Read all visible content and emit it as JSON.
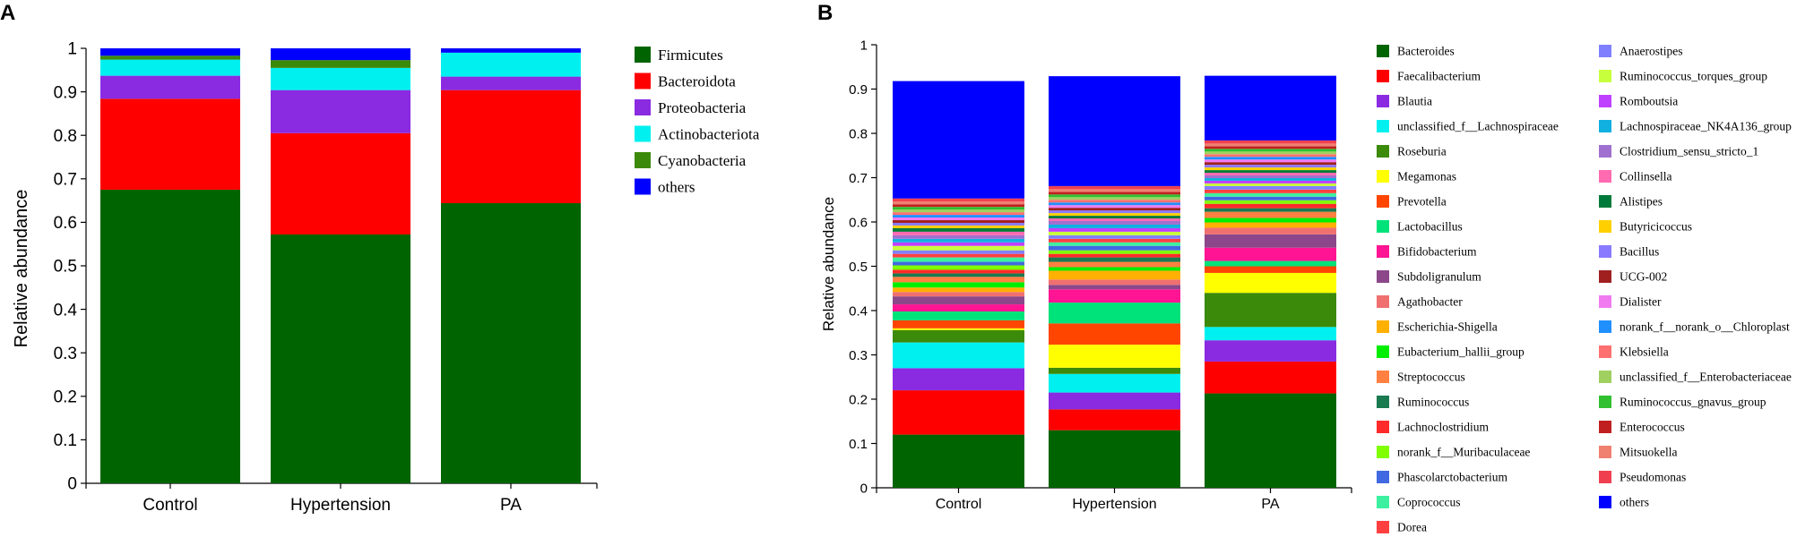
{
  "chart_data": [
    {
      "panel": "A",
      "type": "bar",
      "stacked": true,
      "ylabel": "Relative abundance",
      "xlabel": "",
      "ylim": [
        0,
        1
      ],
      "yticks": [
        "0",
        "0.1",
        "0.2",
        "0.3",
        "0.4",
        "0.5",
        "0.6",
        "0.7",
        "0.8",
        "0.9",
        "1"
      ],
      "categories": [
        "Control",
        "Hypertension",
        "PA"
      ],
      "legend_position": "right",
      "series": [
        {
          "name": "Firmicutes",
          "color": "#006400",
          "values": [
            0.675,
            0.572,
            0.644
          ]
        },
        {
          "name": "Bacteroidota",
          "color": "#ff0000",
          "values": [
            0.209,
            0.233,
            0.26
          ]
        },
        {
          "name": "Proteobacteria",
          "color": "#8a2be2",
          "values": [
            0.053,
            0.099,
            0.031
          ]
        },
        {
          "name": "Actinobacteriota",
          "color": "#00f0f0",
          "values": [
            0.037,
            0.051,
            0.055
          ]
        },
        {
          "name": "Cyanobacteria",
          "color": "#3c8a0a",
          "values": [
            0.009,
            0.018,
            0.0
          ]
        },
        {
          "name": "others",
          "color": "#0000ff",
          "values": [
            0.017,
            0.027,
            0.01
          ]
        }
      ]
    },
    {
      "panel": "B",
      "type": "bar",
      "stacked": true,
      "ylabel": "Relative abundance",
      "xlabel": "",
      "ylim": [
        0,
        1
      ],
      "yticks": [
        "0",
        "0.1",
        "0.2",
        "0.3",
        "0.4",
        "0.5",
        "0.6",
        "0.7",
        "0.8",
        "0.9",
        "1"
      ],
      "categories": [
        "Control",
        "Hypertension",
        "PA"
      ],
      "legend_position": "right",
      "series": [
        {
          "name": "Bacteroides",
          "color": "#006400",
          "values": [
            0.12,
            0.13,
            0.213
          ]
        },
        {
          "name": "Faecalibacterium",
          "color": "#ff0000",
          "values": [
            0.1,
            0.047,
            0.072
          ]
        },
        {
          "name": "Blautia",
          "color": "#8a2be2",
          "values": [
            0.05,
            0.038,
            0.048
          ]
        },
        {
          "name": "unclassified_f__Lachnospiraceae",
          "color": "#00f0f0",
          "values": [
            0.058,
            0.042,
            0.03
          ]
        },
        {
          "name": "Roseburia",
          "color": "#3c8a0a",
          "values": [
            0.028,
            0.014,
            0.077
          ]
        },
        {
          "name": "Megamonas",
          "color": "#ffff00",
          "values": [
            0.004,
            0.052,
            0.045
          ]
        },
        {
          "name": "Prevotella",
          "color": "#ff4500",
          "values": [
            0.018,
            0.048,
            0.015
          ]
        },
        {
          "name": "Lactobacillus",
          "color": "#00e27a",
          "values": [
            0.02,
            0.047,
            0.012
          ]
        },
        {
          "name": "Bifidobacterium",
          "color": "#ff1493",
          "values": [
            0.016,
            0.03,
            0.03
          ]
        },
        {
          "name": "Subdoligranulum",
          "color": "#8b4789",
          "values": [
            0.018,
            0.01,
            0.03
          ]
        },
        {
          "name": "Agathobacter",
          "color": "#f07070",
          "values": [
            0.01,
            0.012,
            0.015
          ]
        },
        {
          "name": "Escherichia-Shigella",
          "color": "#ffb000",
          "values": [
            0.01,
            0.02,
            0.012
          ]
        },
        {
          "name": "Eubacterium_hallii_group",
          "color": "#00ee00",
          "values": [
            0.012,
            0.008,
            0.01
          ]
        },
        {
          "name": "Streptococcus",
          "color": "#ff8040",
          "values": [
            0.012,
            0.012,
            0.014
          ]
        },
        {
          "name": "Ruminococcus",
          "color": "#1a7a50",
          "values": [
            0.008,
            0.01,
            0.008
          ]
        },
        {
          "name": "Lachnoclostridium",
          "color": "#ff2a2a",
          "values": [
            0.008,
            0.008,
            0.01
          ]
        },
        {
          "name": "norank_f__Muribaculaceae",
          "color": "#7fff00",
          "values": [
            0.01,
            0.008,
            0.008
          ]
        },
        {
          "name": "Phascolarctobacterium",
          "color": "#4169e1",
          "values": [
            0.008,
            0.01,
            0.008
          ]
        },
        {
          "name": "Coprococcus",
          "color": "#3cf0a0",
          "values": [
            0.01,
            0.008,
            0.008
          ]
        },
        {
          "name": "Dorea",
          "color": "#ff4040",
          "values": [
            0.008,
            0.008,
            0.008
          ]
        },
        {
          "name": "Anaerostipes",
          "color": "#8080ff",
          "values": [
            0.008,
            0.008,
            0.008
          ]
        },
        {
          "name": "Ruminococcus_torques_group",
          "color": "#c8ff3c",
          "values": [
            0.01,
            0.008,
            0.006
          ]
        },
        {
          "name": "Romboutsia",
          "color": "#c040ff",
          "values": [
            0.008,
            0.008,
            0.006
          ]
        },
        {
          "name": "Lachnospiraceae_NK4A136_group",
          "color": "#10b0e0",
          "values": [
            0.008,
            0.008,
            0.006
          ]
        },
        {
          "name": "Clostridium_sensu_stricto_1",
          "color": "#a070d0",
          "values": [
            0.008,
            0.008,
            0.006
          ]
        },
        {
          "name": "Collinsella",
          "color": "#ff6ab0",
          "values": [
            0.008,
            0.006,
            0.006
          ]
        },
        {
          "name": "Alistipes",
          "color": "#007a3a",
          "values": [
            0.008,
            0.006,
            0.006
          ]
        },
        {
          "name": "Butyricicoccus",
          "color": "#ffd000",
          "values": [
            0.006,
            0.006,
            0.006
          ]
        },
        {
          "name": "Bacillus",
          "color": "#8a7aff",
          "values": [
            0.006,
            0.006,
            0.006
          ]
        },
        {
          "name": "UCG-002",
          "color": "#a02020",
          "values": [
            0.006,
            0.006,
            0.006
          ]
        },
        {
          "name": "Dialister",
          "color": "#f07af0",
          "values": [
            0.006,
            0.006,
            0.006
          ]
        },
        {
          "name": "norank_f__norank_o__Chloroplast",
          "color": "#2090ff",
          "values": [
            0.006,
            0.006,
            0.006
          ]
        },
        {
          "name": "Klebsiella",
          "color": "#ff7070",
          "values": [
            0.006,
            0.006,
            0.006
          ]
        },
        {
          "name": "unclassified_f__Enterobacteriaceae",
          "color": "#a0d060",
          "values": [
            0.006,
            0.006,
            0.006
          ]
        },
        {
          "name": "Ruminococcus_gnavus_group",
          "color": "#30c030",
          "values": [
            0.006,
            0.006,
            0.006
          ]
        },
        {
          "name": "Enterococcus",
          "color": "#c02020",
          "values": [
            0.006,
            0.006,
            0.006
          ]
        },
        {
          "name": "Mitsuokella",
          "color": "#f08070",
          "values": [
            0.006,
            0.006,
            0.006
          ]
        },
        {
          "name": "Pseudomonas",
          "color": "#f04050",
          "values": [
            0.007,
            0.007,
            0.007
          ]
        },
        {
          "name": "others",
          "color": "#0000ff",
          "values": [
            0.265,
            0.248,
            0.146
          ]
        }
      ]
    }
  ]
}
